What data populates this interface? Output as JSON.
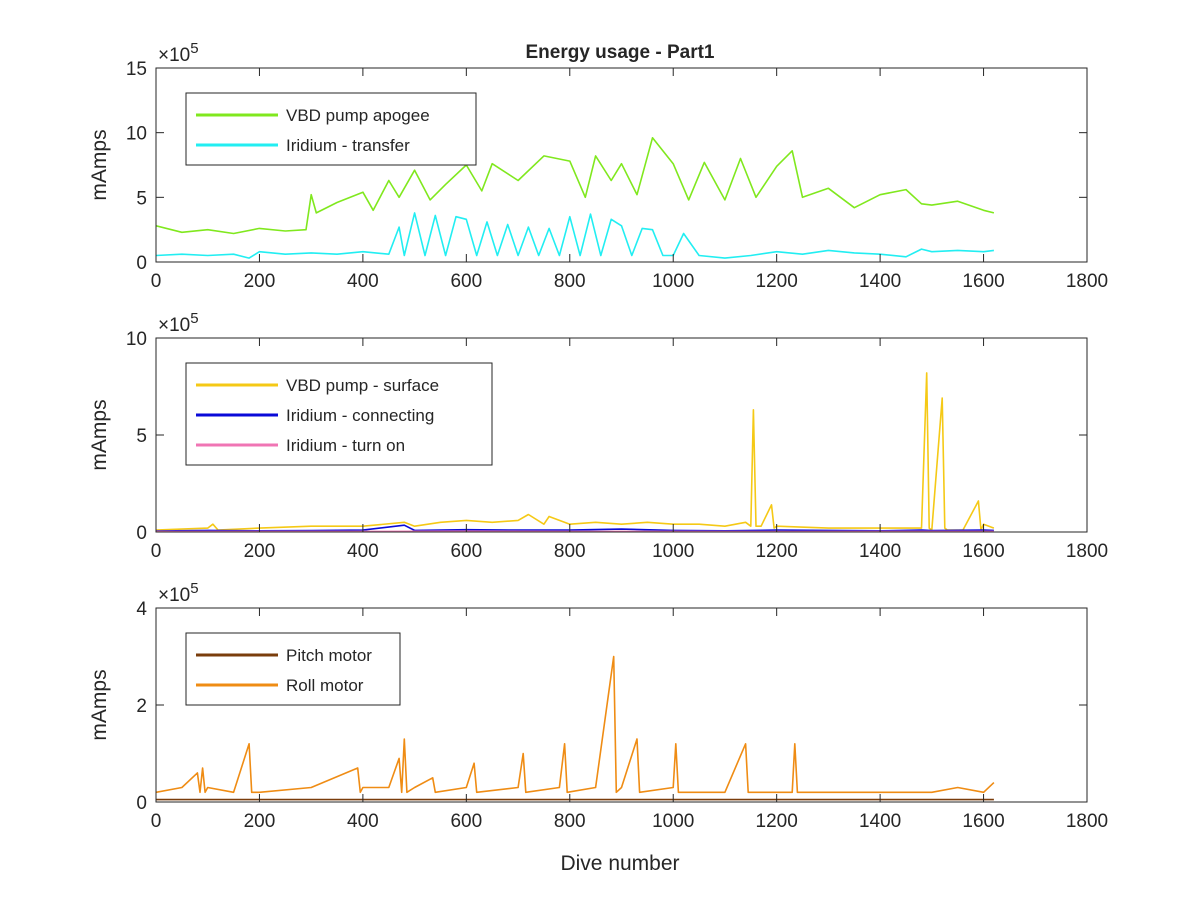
{
  "figure": {
    "title": "Energy usage - Part1",
    "xlabel": "Dive number"
  },
  "chart_data": [
    {
      "type": "line",
      "title": "Energy usage - Part1",
      "xlabel": "",
      "ylabel": "mAmps",
      "multiplier": "×10",
      "exponent": "5",
      "xlim": [
        0,
        1800
      ],
      "ylim": [
        0,
        15
      ],
      "xticks": [
        0,
        200,
        400,
        600,
        800,
        1000,
        1200,
        1400,
        1600,
        1800
      ],
      "yticks": [
        0,
        5,
        10,
        15
      ],
      "grid": false,
      "legend_position": "top-left",
      "series": [
        {
          "name": "VBD pump apogee",
          "color": "#80e81e",
          "x": [
            0,
            50,
            100,
            150,
            200,
            250,
            290,
            300,
            310,
            350,
            400,
            420,
            450,
            470,
            500,
            530,
            560,
            600,
            630,
            650,
            700,
            750,
            800,
            830,
            850,
            880,
            900,
            930,
            960,
            1000,
            1030,
            1060,
            1100,
            1130,
            1160,
            1200,
            1230,
            1250,
            1300,
            1350,
            1400,
            1450,
            1480,
            1500,
            1550,
            1600,
            1620
          ],
          "y": [
            2.8,
            2.3,
            2.5,
            2.2,
            2.6,
            2.4,
            2.5,
            5.2,
            3.8,
            4.6,
            5.4,
            4.0,
            6.3,
            5.0,
            7.1,
            4.8,
            6.0,
            7.5,
            5.5,
            7.6,
            6.3,
            8.2,
            7.8,
            5.0,
            8.2,
            6.3,
            7.6,
            5.2,
            9.6,
            7.6,
            4.8,
            7.7,
            4.8,
            8.0,
            5.0,
            7.4,
            8.6,
            5.0,
            5.7,
            4.2,
            5.2,
            5.6,
            4.5,
            4.4,
            4.7,
            4.0,
            3.8
          ]
        },
        {
          "name": "Iridium - transfer",
          "color": "#22eef2",
          "x": [
            0,
            50,
            100,
            150,
            180,
            200,
            250,
            300,
            350,
            400,
            450,
            470,
            480,
            500,
            520,
            540,
            560,
            580,
            600,
            620,
            640,
            660,
            680,
            700,
            720,
            740,
            760,
            780,
            800,
            820,
            840,
            860,
            880,
            900,
            920,
            940,
            960,
            980,
            1000,
            1020,
            1050,
            1100,
            1150,
            1200,
            1250,
            1300,
            1350,
            1400,
            1450,
            1480,
            1500,
            1550,
            1600,
            1620
          ],
          "y": [
            0.5,
            0.6,
            0.5,
            0.6,
            0.3,
            0.8,
            0.6,
            0.7,
            0.6,
            0.8,
            0.6,
            2.7,
            0.5,
            3.8,
            0.5,
            3.6,
            0.5,
            3.5,
            3.3,
            0.5,
            3.1,
            0.5,
            2.9,
            0.5,
            2.7,
            0.5,
            2.6,
            0.5,
            3.5,
            0.5,
            3.7,
            0.5,
            3.3,
            2.8,
            0.5,
            2.6,
            2.5,
            0.5,
            0.5,
            2.2,
            0.5,
            0.3,
            0.5,
            0.8,
            0.6,
            0.9,
            0.7,
            0.6,
            0.4,
            1.0,
            0.8,
            0.9,
            0.8,
            0.9
          ]
        }
      ]
    },
    {
      "type": "line",
      "title": "",
      "xlabel": "",
      "ylabel": "mAmps",
      "multiplier": "×10",
      "exponent": "5",
      "xlim": [
        0,
        1800
      ],
      "ylim": [
        0,
        10
      ],
      "xticks": [
        0,
        200,
        400,
        600,
        800,
        1000,
        1200,
        1400,
        1600,
        1800
      ],
      "yticks": [
        0,
        5,
        10
      ],
      "grid": false,
      "legend_position": "top-left",
      "series": [
        {
          "name": "VBD pump - surface",
          "color": "#f5c916",
          "x": [
            0,
            100,
            110,
            120,
            200,
            300,
            400,
            480,
            500,
            550,
            600,
            650,
            700,
            720,
            750,
            760,
            800,
            850,
            900,
            950,
            1000,
            1050,
            1100,
            1140,
            1150,
            1155,
            1160,
            1170,
            1190,
            1195,
            1200,
            1300,
            1400,
            1480,
            1490,
            1495,
            1500,
            1520,
            1525,
            1530,
            1560,
            1590,
            1595,
            1600,
            1620
          ],
          "y": [
            0.1,
            0.2,
            0.4,
            0.1,
            0.2,
            0.3,
            0.3,
            0.5,
            0.3,
            0.5,
            0.6,
            0.5,
            0.6,
            0.9,
            0.4,
            0.8,
            0.4,
            0.5,
            0.4,
            0.5,
            0.4,
            0.4,
            0.3,
            0.5,
            0.3,
            6.3,
            0.3,
            0.3,
            1.4,
            0.2,
            0.3,
            0.2,
            0.2,
            0.2,
            8.2,
            0.2,
            0.1,
            6.9,
            0.2,
            0.1,
            0.1,
            1.6,
            0.1,
            0.4,
            0.2
          ]
        },
        {
          "name": "Iridium - connecting",
          "color": "#0a0ad8",
          "x": [
            0,
            100,
            200,
            300,
            400,
            480,
            500,
            600,
            700,
            800,
            900,
            1000,
            1100,
            1200,
            1300,
            1400,
            1480,
            1500,
            1600,
            1620
          ],
          "y": [
            0.05,
            0.08,
            0.06,
            0.07,
            0.1,
            0.35,
            0.08,
            0.12,
            0.1,
            0.1,
            0.15,
            0.08,
            0.06,
            0.1,
            0.08,
            0.06,
            0.1,
            0.07,
            0.1,
            0.08
          ]
        },
        {
          "name": "Iridium - turn on",
          "color": "#f075b4",
          "x": [
            0,
            200,
            400,
            600,
            800,
            1000,
            1200,
            1400,
            1600,
            1620
          ],
          "y": [
            0.02,
            0.03,
            0.03,
            0.04,
            0.03,
            0.03,
            0.02,
            0.03,
            0.03,
            0.03
          ]
        }
      ]
    },
    {
      "type": "line",
      "title": "",
      "xlabel": "Dive number",
      "ylabel": "mAmps",
      "multiplier": "×10",
      "exponent": "5",
      "xlim": [
        0,
        1800
      ],
      "ylim": [
        0,
        4
      ],
      "xticks": [
        0,
        200,
        400,
        600,
        800,
        1000,
        1200,
        1400,
        1600,
        1800
      ],
      "yticks": [
        0,
        2,
        4
      ],
      "grid": false,
      "legend_position": "top-left",
      "series": [
        {
          "name": "Pitch motor",
          "color": "#7a3d0c",
          "x": [
            0,
            200,
            400,
            600,
            800,
            1000,
            1200,
            1400,
            1600,
            1620
          ],
          "y": [
            0.05,
            0.05,
            0.05,
            0.05,
            0.05,
            0.05,
            0.05,
            0.05,
            0.05,
            0.05
          ]
        },
        {
          "name": "Roll motor",
          "color": "#ef8c14",
          "x": [
            0,
            50,
            80,
            85,
            90,
            95,
            100,
            150,
            180,
            185,
            200,
            300,
            390,
            395,
            400,
            450,
            470,
            475,
            480,
            485,
            500,
            535,
            540,
            600,
            615,
            620,
            700,
            710,
            715,
            780,
            790,
            795,
            850,
            885,
            890,
            900,
            930,
            935,
            1000,
            1005,
            1010,
            1100,
            1140,
            1145,
            1150,
            1230,
            1235,
            1240,
            1300,
            1400,
            1500,
            1550,
            1600,
            1620
          ],
          "y": [
            0.2,
            0.3,
            0.6,
            0.2,
            0.7,
            0.2,
            0.3,
            0.2,
            1.2,
            0.2,
            0.2,
            0.3,
            0.7,
            0.2,
            0.3,
            0.3,
            0.9,
            0.2,
            1.3,
            0.2,
            0.3,
            0.5,
            0.2,
            0.3,
            0.8,
            0.2,
            0.3,
            1.0,
            0.2,
            0.3,
            1.2,
            0.2,
            0.3,
            3.0,
            0.2,
            0.3,
            1.3,
            0.2,
            0.3,
            1.2,
            0.2,
            0.2,
            1.2,
            0.2,
            0.2,
            0.2,
            1.2,
            0.2,
            0.2,
            0.2,
            0.2,
            0.3,
            0.2,
            0.4
          ]
        }
      ]
    }
  ]
}
